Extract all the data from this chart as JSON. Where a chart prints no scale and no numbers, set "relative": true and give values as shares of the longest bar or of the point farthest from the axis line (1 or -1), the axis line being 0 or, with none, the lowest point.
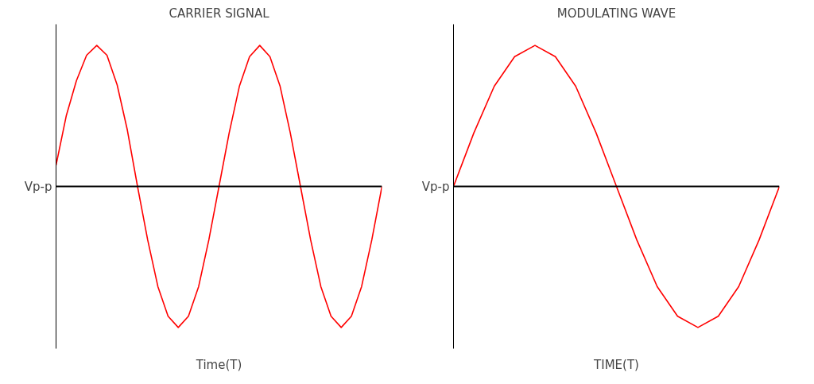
{
  "chart_data": [
    {
      "type": "line",
      "title": "CARRIER SIGNAL",
      "xlabel": "Time(T)",
      "ylabel": "Vp-p",
      "relative": true,
      "categories": [
        null,
        null,
        null,
        null,
        null,
        null,
        null,
        null,
        null,
        null,
        null,
        null,
        null,
        null,
        null,
        null,
        null,
        null,
        null,
        null,
        null,
        null,
        null,
        null,
        null,
        null,
        null,
        null,
        null,
        null,
        null,
        null,
        null
      ],
      "series": [
        {
          "color": "#ff0000",
          "values": [
            0.15,
            0.5,
            0.75,
            0.93,
            1,
            0.93,
            0.72,
            0.4,
            0,
            -0.38,
            -0.71,
            -0.92,
            -1,
            -0.92,
            -0.71,
            -0.38,
            0,
            0.38,
            0.71,
            0.92,
            1,
            0.92,
            0.71,
            0.38,
            0,
            -0.38,
            -0.71,
            -0.92,
            -1,
            -0.92,
            -0.71,
            -0.38,
            0
          ]
        }
      ]
    },
    {
      "type": "line",
      "title": "MODULATING WAVE",
      "xlabel": "TIME(T)",
      "ylabel": "Vp-p",
      "relative": true,
      "categories": [
        null,
        null,
        null,
        null,
        null,
        null,
        null,
        null,
        null,
        null,
        null,
        null,
        null,
        null,
        null,
        null,
        null
      ],
      "series": [
        {
          "color": "#ff0000",
          "values": [
            0,
            0.38,
            0.71,
            0.92,
            1,
            0.92,
            0.71,
            0.38,
            0,
            -0.38,
            -0.71,
            -0.92,
            -1,
            -0.92,
            -0.71,
            -0.38,
            0
          ]
        }
      ]
    }
  ]
}
